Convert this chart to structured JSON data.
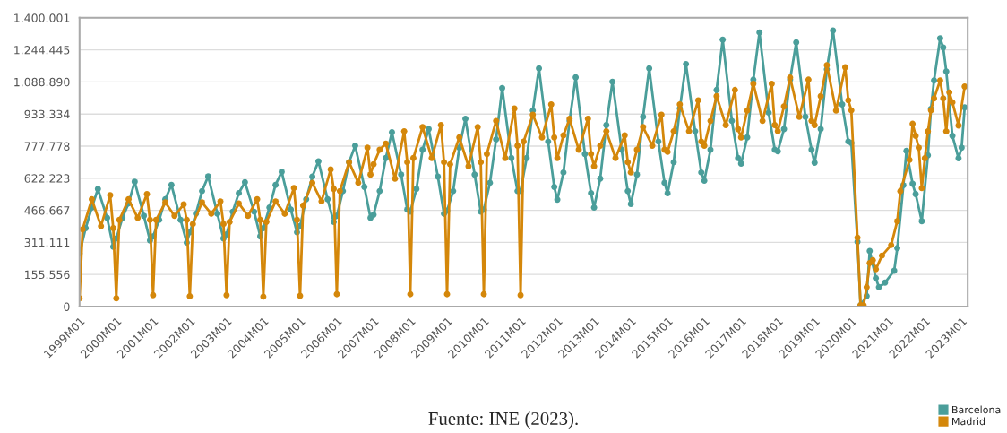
{
  "chart_data": {
    "type": "line",
    "annotations": [
      "Fuente: INE (2023)."
    ],
    "xlim": [
      "1999-01",
      "2023-03"
    ],
    "xticks": [
      {
        "value": "1999-01",
        "label": "1999M01"
      },
      {
        "value": "2000-01",
        "label": "2000M01"
      },
      {
        "value": "2001-01",
        "label": "2001M01"
      },
      {
        "value": "2002-01",
        "label": "2002M01"
      },
      {
        "value": "2003-01",
        "label": "2003M01"
      },
      {
        "value": "2004-01",
        "label": "2004M01"
      },
      {
        "value": "2005-01",
        "label": "2005M01"
      },
      {
        "value": "2006-01",
        "label": "2006M01"
      },
      {
        "value": "2007-01",
        "label": "2007M01"
      },
      {
        "value": "2008-01",
        "label": "2008M01"
      },
      {
        "value": "2009-01",
        "label": "2009M01"
      },
      {
        "value": "2010-01",
        "label": "2010M01"
      },
      {
        "value": "2011-01",
        "label": "2011M01"
      },
      {
        "value": "2012-01",
        "label": "2012M01"
      },
      {
        "value": "2013-01",
        "label": "2013M01"
      },
      {
        "value": "2014-01",
        "label": "2014M01"
      },
      {
        "value": "2015-01",
        "label": "2015M01"
      },
      {
        "value": "2016-01",
        "label": "2016M01"
      },
      {
        "value": "2017-01",
        "label": "2017M01"
      },
      {
        "value": "2018-01",
        "label": "2018M01"
      },
      {
        "value": "2019-01",
        "label": "2019M01"
      },
      {
        "value": "2020-01",
        "label": "2020M01"
      },
      {
        "value": "2021-01",
        "label": "2021M01"
      },
      {
        "value": "2022-01",
        "label": "2022M01"
      },
      {
        "value": "2023-01",
        "label": "2023M01"
      }
    ],
    "ylim": [
      0,
      1400001
    ],
    "yticks": [
      0,
      {
        "value": 155556,
        "label": "155.556"
      },
      {
        "value": 311111,
        "label": "311.111"
      },
      {
        "value": 466667,
        "label": "466.667"
      },
      {
        "value": 622223,
        "label": "622.223"
      },
      {
        "value": 777778,
        "label": "777.778"
      },
      {
        "value": 933334,
        "label": "933.334"
      },
      {
        "value": 1088890,
        "label": "1.088.890"
      },
      {
        "value": 1244445,
        "label": "1.244.445"
      },
      {
        "value": 1400001,
        "label": "1.400.001"
      }
    ],
    "grid": "y",
    "legend": "bottom right",
    "marker": "circle",
    "line_style": "solid",
    "series": [
      {
        "name": "Barcelona",
        "color": "#4a9e9a",
        "x": [
          "1999-01",
          "1999-03",
          "1999-05",
          "1999-07",
          "1999-10",
          "1999-12",
          "2000-01",
          "2000-03",
          "2000-05",
          "2000-07",
          "2000-10",
          "2000-12",
          "2001-01",
          "2001-03",
          "2001-05",
          "2001-07",
          "2001-10",
          "2001-12",
          "2002-01",
          "2002-03",
          "2002-05",
          "2002-07",
          "2002-10",
          "2002-12",
          "2003-01",
          "2003-03",
          "2003-05",
          "2003-07",
          "2003-10",
          "2003-12",
          "2004-01",
          "2004-03",
          "2004-05",
          "2004-07",
          "2004-10",
          "2004-12",
          "2005-01",
          "2005-03",
          "2005-05",
          "2005-07",
          "2005-10",
          "2005-12",
          "2006-01",
          "2006-03",
          "2006-05",
          "2006-07",
          "2006-10",
          "2006-12",
          "2007-01",
          "2007-03",
          "2007-05",
          "2007-07",
          "2007-10",
          "2007-12",
          "2008-01",
          "2008-03",
          "2008-05",
          "2008-07",
          "2008-10",
          "2008-12",
          "2009-01",
          "2009-03",
          "2009-05",
          "2009-07",
          "2009-10",
          "2009-12",
          "2010-01",
          "2010-03",
          "2010-05",
          "2010-07",
          "2010-10",
          "2010-12",
          "2011-01",
          "2011-03",
          "2011-05",
          "2011-07",
          "2011-10",
          "2011-12",
          "2012-01",
          "2012-03",
          "2012-05",
          "2012-07",
          "2012-10",
          "2012-12",
          "2013-01",
          "2013-03",
          "2013-05",
          "2013-07",
          "2013-10",
          "2013-12",
          "2014-01",
          "2014-03",
          "2014-05",
          "2014-07",
          "2014-10",
          "2014-12",
          "2015-01",
          "2015-03",
          "2015-05",
          "2015-07",
          "2015-10",
          "2015-12",
          "2016-01",
          "2016-03",
          "2016-05",
          "2016-07",
          "2016-10",
          "2016-12",
          "2017-01",
          "2017-03",
          "2017-05",
          "2017-07",
          "2017-10",
          "2017-12",
          "2018-01",
          "2018-03",
          "2018-05",
          "2018-07",
          "2018-10",
          "2018-12",
          "2019-01",
          "2019-03",
          "2019-05",
          "2019-07",
          "2019-10",
          "2019-12",
          "2020-01",
          "2020-03",
          "2020-04",
          "2020-06",
          "2020-07",
          "2020-09",
          "2020-10",
          "2020-12",
          "2021-03",
          "2021-04",
          "2021-06",
          "2021-07",
          "2021-09",
          "2021-10",
          "2021-12",
          "2022-02",
          "2022-03",
          "2022-04",
          "2022-06",
          "2022-07",
          "2022-08",
          "2022-10",
          "2022-12",
          "2023-01",
          "2023-02"
        ],
        "values": [
          257000,
          380000,
          480000,
          570000,
          430000,
          290000,
          330000,
          430000,
          500000,
          605000,
          440000,
          320000,
          340000,
          420000,
          520000,
          590000,
          420000,
          310000,
          360000,
          450000,
          560000,
          631000,
          450000,
          330000,
          350000,
          460000,
          550000,
          603000,
          460000,
          340000,
          380000,
          480000,
          590000,
          653000,
          470000,
          360000,
          390000,
          520000,
          630000,
          704000,
          520000,
          410000,
          440000,
          560000,
          700000,
          780000,
          580000,
          430000,
          445000,
          560000,
          720000,
          845000,
          640000,
          470000,
          460000,
          570000,
          760000,
          860000,
          630000,
          450000,
          465000,
          560000,
          770000,
          910000,
          640000,
          460000,
          470000,
          600000,
          810000,
          1059000,
          720000,
          560000,
          560000,
          720000,
          950000,
          1155000,
          800000,
          580000,
          518000,
          650000,
          900000,
          1111000,
          740000,
          550000,
          480000,
          620000,
          880000,
          1090000,
          760000,
          560000,
          497000,
          640000,
          920000,
          1155000,
          800000,
          600000,
          549000,
          700000,
          960000,
          1176000,
          850000,
          650000,
          610000,
          760000,
          1050000,
          1294000,
          900000,
          720000,
          693000,
          820000,
          1100000,
          1329000,
          940000,
          760000,
          753000,
          860000,
          1100000,
          1281000,
          920000,
          760000,
          697000,
          860000,
          1150000,
          1338000,
          980000,
          800000,
          793000,
          314000,
          7000,
          51000,
          269000,
          138000,
          94000,
          116000,
          174000,
          283000,
          588000,
          755000,
          595000,
          545000,
          414000,
          733000,
          958000,
          1096000,
          1300000,
          1256000,
          1140000,
          828000,
          719000,
          770000,
          966000
        ]
      },
      {
        "name": "Madrid",
        "color": "#d4870a",
        "x": [
          "1999-01",
          "1999-02",
          "1999-05",
          "1999-08",
          "1999-11",
          "1999-12",
          "2000-01",
          "2000-02",
          "2000-05",
          "2000-08",
          "2000-11",
          "2000-12",
          "2001-01",
          "2001-02",
          "2001-05",
          "2001-08",
          "2001-11",
          "2001-12",
          "2002-01",
          "2002-02",
          "2002-05",
          "2002-08",
          "2002-11",
          "2002-12",
          "2003-01",
          "2003-02",
          "2003-05",
          "2003-08",
          "2003-11",
          "2003-12",
          "2004-01",
          "2004-02",
          "2004-05",
          "2004-08",
          "2004-11",
          "2004-12",
          "2005-01",
          "2005-02",
          "2005-05",
          "2005-08",
          "2005-11",
          "2005-12",
          "2006-01",
          "2006-02",
          "2006-05",
          "2006-08",
          "2006-11",
          "2006-12",
          "2007-01",
          "2007-03",
          "2007-05",
          "2007-08",
          "2007-11",
          "2007-12",
          "2008-01",
          "2008-02",
          "2008-05",
          "2008-08",
          "2008-11",
          "2008-12",
          "2009-01",
          "2009-02",
          "2009-05",
          "2009-08",
          "2009-11",
          "2009-12",
          "2010-01",
          "2010-02",
          "2010-05",
          "2010-08",
          "2010-11",
          "2010-12",
          "2011-01",
          "2011-02",
          "2011-05",
          "2011-08",
          "2011-11",
          "2011-12",
          "2012-01",
          "2012-03",
          "2012-05",
          "2012-08",
          "2012-11",
          "2012-12",
          "2013-01",
          "2013-03",
          "2013-05",
          "2013-08",
          "2013-11",
          "2013-12",
          "2014-01",
          "2014-03",
          "2014-05",
          "2014-08",
          "2014-11",
          "2014-12",
          "2015-01",
          "2015-03",
          "2015-05",
          "2015-08",
          "2015-11",
          "2015-12",
          "2016-01",
          "2016-03",
          "2016-05",
          "2016-08",
          "2016-11",
          "2016-12",
          "2017-01",
          "2017-03",
          "2017-05",
          "2017-08",
          "2017-11",
          "2017-12",
          "2018-01",
          "2018-03",
          "2018-05",
          "2018-08",
          "2018-11",
          "2018-12",
          "2019-01",
          "2019-03",
          "2019-05",
          "2019-08",
          "2019-11",
          "2019-12",
          "2020-01",
          "2020-03",
          "2020-04",
          "2020-05",
          "2020-06",
          "2020-07",
          "2020-08",
          "2020-09",
          "2020-11",
          "2021-02",
          "2021-04",
          "2021-05",
          "2021-08",
          "2021-09",
          "2021-10",
          "2021-11",
          "2021-12",
          "2022-01",
          "2022-02",
          "2022-03",
          "2022-04",
          "2022-06",
          "2022-07",
          "2022-08",
          "2022-09",
          "2022-10",
          "2022-12",
          "2023-02"
        ],
        "values": [
          40000,
          375000,
          520000,
          390000,
          540000,
          380000,
          40000,
          420000,
          520000,
          430000,
          545000,
          420000,
          55000,
          420000,
          505000,
          440000,
          495000,
          420000,
          50000,
          400000,
          505000,
          450000,
          510000,
          400000,
          55000,
          410000,
          500000,
          440000,
          520000,
          420000,
          48000,
          410000,
          510000,
          450000,
          575000,
          420000,
          52000,
          490000,
          600000,
          510000,
          665000,
          570000,
          60000,
          560000,
          700000,
          600000,
          770000,
          640000,
          690000,
          760000,
          790000,
          620000,
          850000,
          700000,
          60000,
          720000,
          870000,
          720000,
          880000,
          700000,
          60000,
          690000,
          820000,
          680000,
          870000,
          700000,
          60000,
          740000,
          900000,
          720000,
          960000,
          780000,
          55000,
          800000,
          930000,
          820000,
          980000,
          820000,
          720000,
          830000,
          910000,
          760000,
          910000,
          740000,
          680000,
          780000,
          850000,
          720000,
          830000,
          700000,
          650000,
          760000,
          870000,
          780000,
          930000,
          760000,
          750000,
          850000,
          980000,
          850000,
          1000000,
          800000,
          780000,
          900000,
          1020000,
          880000,
          1050000,
          860000,
          820000,
          950000,
          1080000,
          900000,
          1080000,
          880000,
          850000,
          970000,
          1110000,
          920000,
          1100000,
          900000,
          880000,
          1020000,
          1170000,
          950000,
          1160000,
          1000000,
          951000,
          334000,
          7000,
          7000,
          94000,
          211000,
          225000,
          181000,
          247000,
          298000,
          414000,
          559000,
          711000,
          886000,
          828000,
          770000,
          574000,
          719000,
          849000,
          951000,
          1009000,
          1096000,
          1009000,
          849000,
          1038000,
          990000,
          878000,
          1067000
        ]
      }
    ]
  }
}
